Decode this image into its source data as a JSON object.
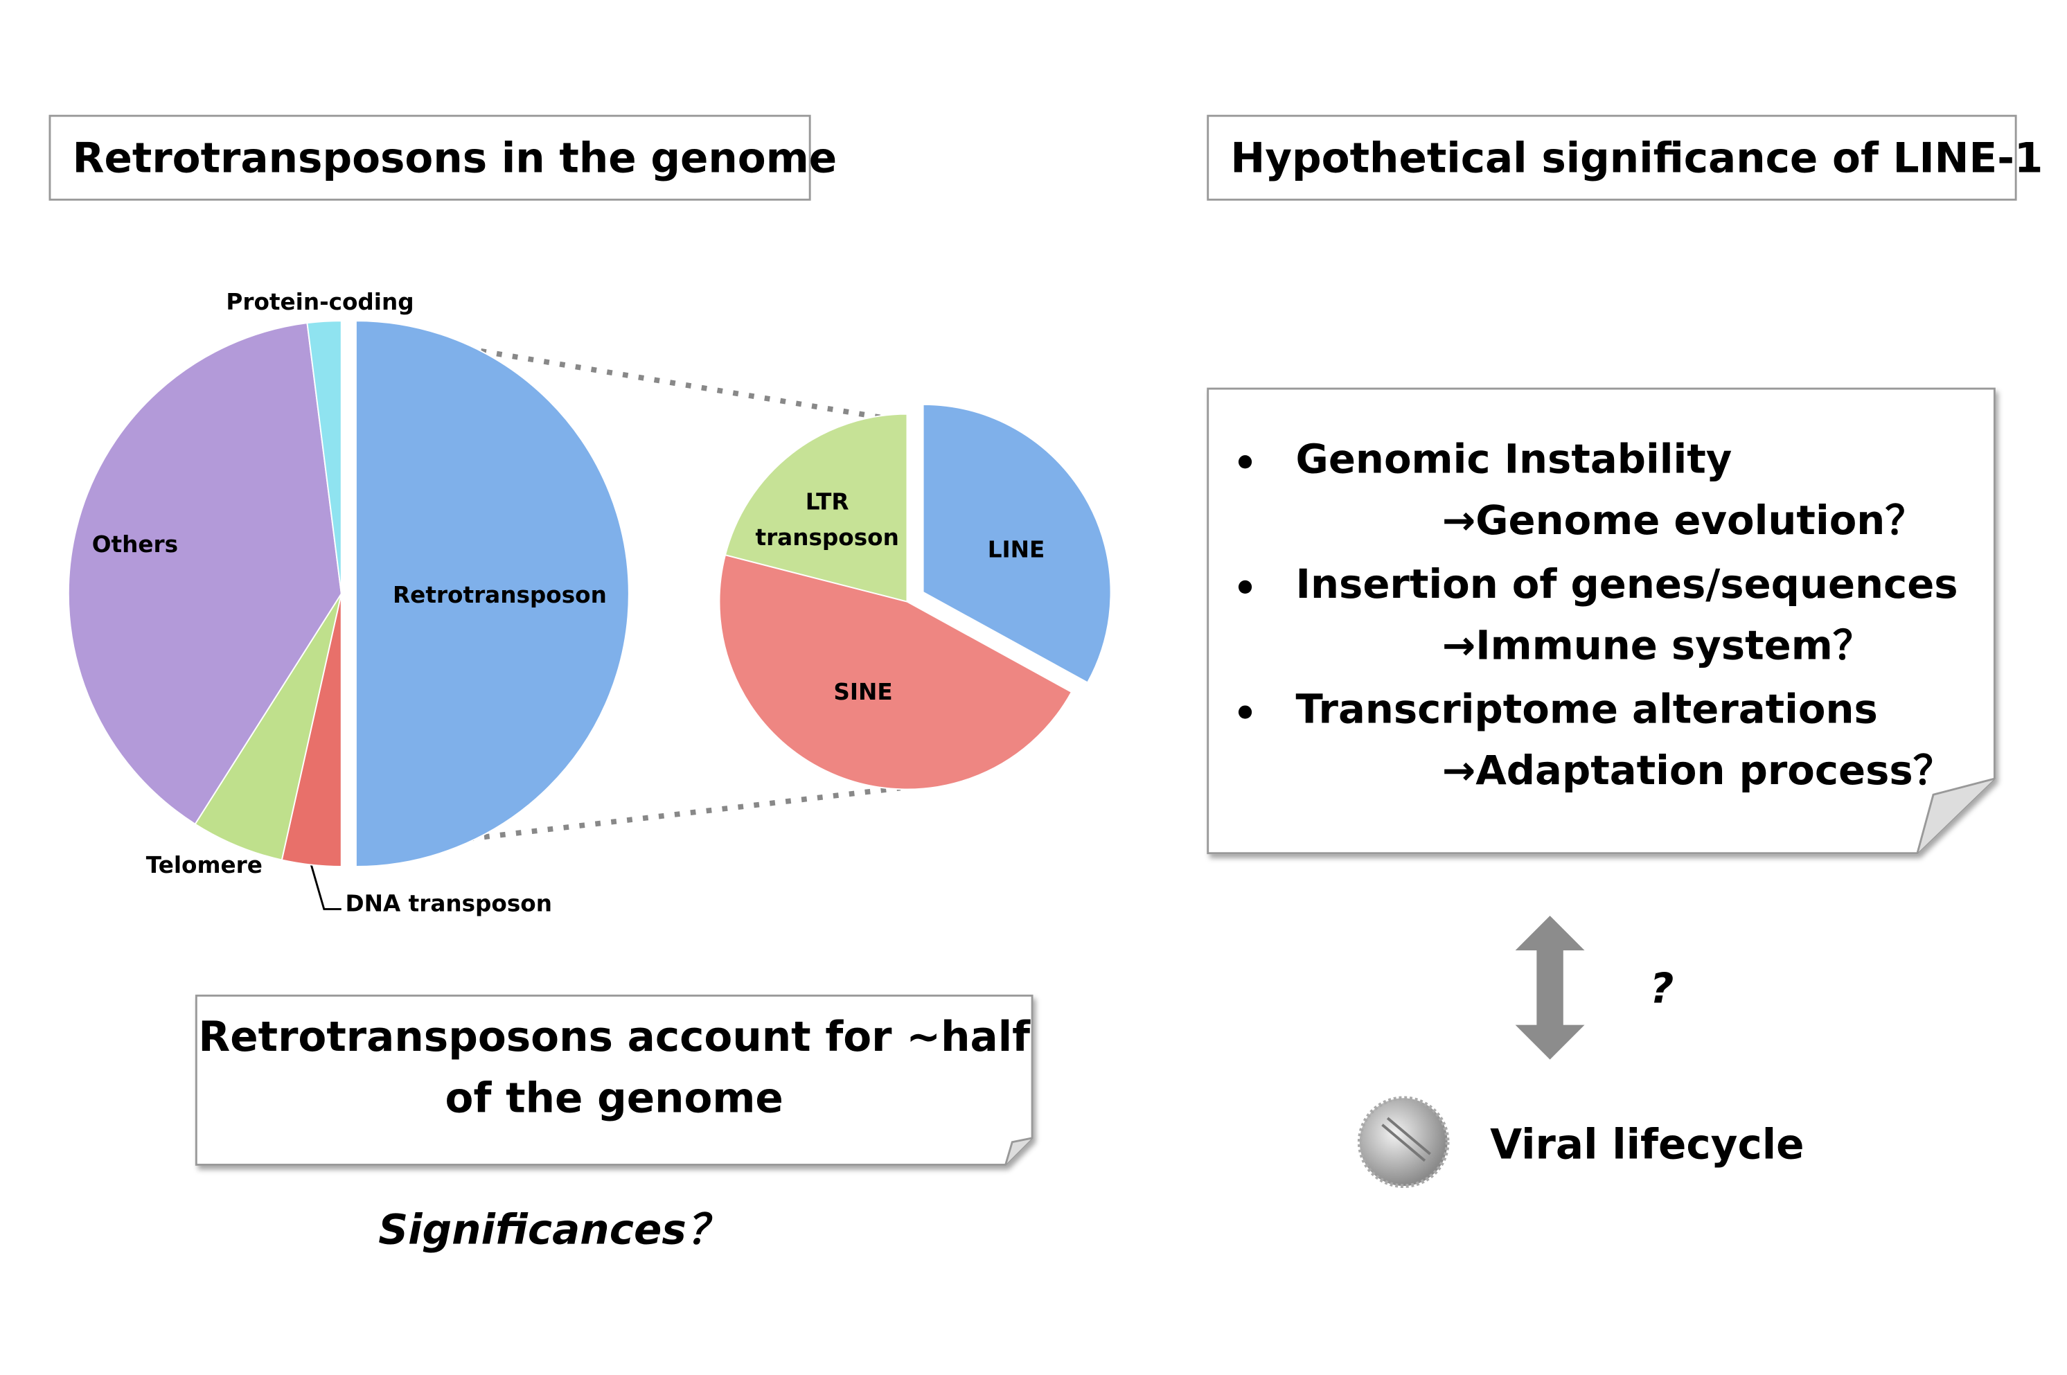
{
  "left_panel": {
    "title": "Retrotransposons in the genome",
    "pie": {
      "slices": [
        {
          "label": [
            "Retrotransposon"
          ],
          "value": 50,
          "color": "#7fb0ea"
        },
        {
          "label": [
            "DNA transposon"
          ],
          "value": 3.5,
          "color": "#e8706a"
        },
        {
          "label": [
            "Telomere"
          ],
          "value": 5.5,
          "color": "#bfe08c"
        },
        {
          "label": [
            "Others"
          ],
          "value": 39,
          "color": "#b39ad9"
        },
        {
          "label": [
            "Protein-coding"
          ],
          "value": 2,
          "color": "#8fe3f0"
        }
      ]
    },
    "zoom_pie": {
      "slices": [
        {
          "label": [
            "LINE"
          ],
          "value": 33,
          "color": "#7fb0ea"
        },
        {
          "label": [
            "SINE"
          ],
          "value": 46,
          "color": "#ee8682"
        },
        {
          "label": [
            "LTR",
            "transposon"
          ],
          "value": 21,
          "color": "#c6e296"
        }
      ]
    },
    "note": [
      "Retrotransposons account for ~half",
      "of the genome"
    ],
    "question": "Significances？"
  },
  "right_panel": {
    "title": "Hypothetical significance of LINE-1",
    "items": [
      {
        "text": "Genomic Instability",
        "outcome": "→Genome evolution？"
      },
      {
        "text": "Insertion of genes/sequences",
        "outcome": "→Immune system？"
      },
      {
        "text": "Transcriptome alterations",
        "outcome": "→Adaptation process？"
      }
    ],
    "link_mark": "?",
    "virus_label": "Viral lifecycle"
  }
}
